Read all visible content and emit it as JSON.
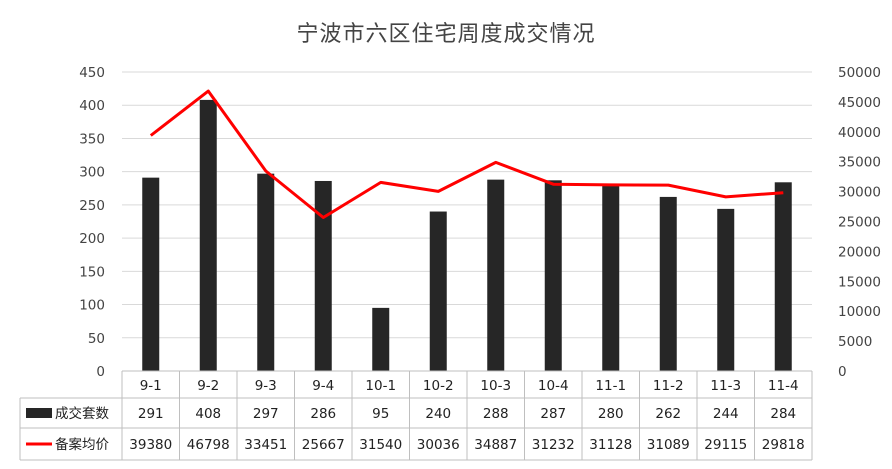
{
  "chart_data": {
    "type": "bar",
    "title": "宁波市六区住宅周度成交情况",
    "categories": [
      "9-1",
      "9-2",
      "9-3",
      "9-4",
      "10-1",
      "10-2",
      "10-3",
      "10-4",
      "11-1",
      "11-2",
      "11-3",
      "11-4"
    ],
    "series": [
      {
        "name": "成交套数",
        "type": "bar",
        "axis": "left",
        "color": "#262626",
        "values": [
          291,
          408,
          297,
          286,
          95,
          240,
          288,
          287,
          280,
          262,
          244,
          284
        ]
      },
      {
        "name": "备案均价",
        "type": "line",
        "axis": "right",
        "color": "#ff0000",
        "values": [
          39380,
          46798,
          33451,
          25667,
          31540,
          30036,
          34887,
          31232,
          31128,
          31089,
          29115,
          29818
        ]
      }
    ],
    "y_left": {
      "range": [
        0,
        450
      ],
      "ticks": [
        "0",
        "50",
        "100",
        "150",
        "200",
        "250",
        "300",
        "350",
        "400",
        "450"
      ]
    },
    "y_right": {
      "range": [
        0,
        50000
      ],
      "ticks": [
        "0",
        "5000",
        "10000",
        "15000",
        "20000",
        "25000",
        "30000",
        "35000",
        "40000",
        "45000",
        "50000"
      ]
    },
    "grid": true,
    "legend": "data-table-below"
  }
}
